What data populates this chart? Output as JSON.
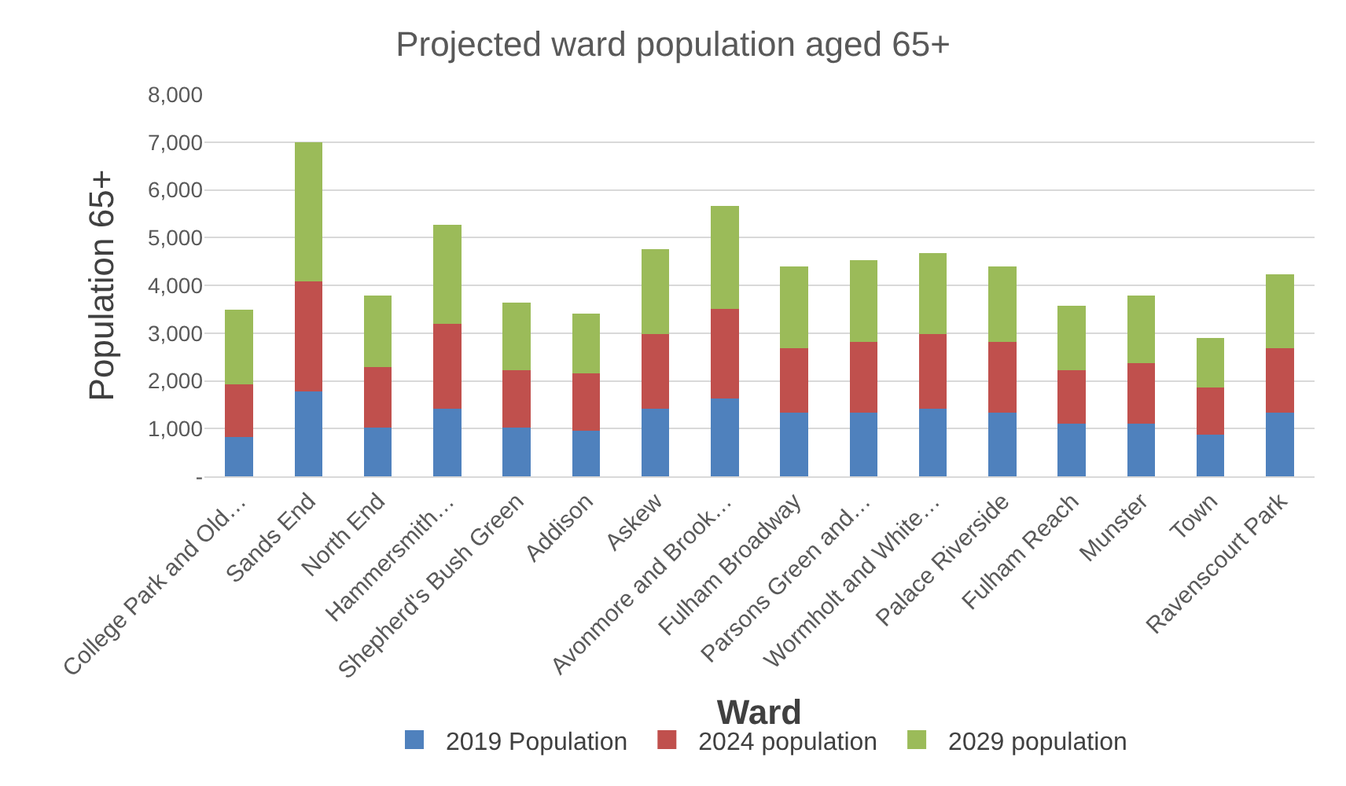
{
  "chart_data": {
    "type": "bar",
    "stacked": true,
    "title": "Projected ward population aged 65+",
    "xlabel": "Ward",
    "ylabel": "Population 65+",
    "categories": [
      "College Park and Old…",
      "Sands End",
      "North End",
      "Hammersmith…",
      "Shepherd's Bush Green",
      "Addison",
      "Askew",
      "Avonmore and Brook…",
      "Fulham Broadway",
      "Parsons Green and…",
      "Wormholt and White…",
      "Palace Riverside",
      "Fulham Reach",
      "Munster",
      "Town",
      "Ravenscourt Park"
    ],
    "series": [
      {
        "name": "2019 Population",
        "color": "#4f81bd",
        "values": [
          820,
          1780,
          1020,
          1410,
          1020,
          960,
          1410,
          1630,
          1330,
          1330,
          1410,
          1330,
          1100,
          1100,
          880,
          1330
        ]
      },
      {
        "name": "2024 population",
        "color": "#c0504d",
        "values": [
          1100,
          2300,
          1270,
          1780,
          1210,
          1200,
          1570,
          1870,
          1350,
          1490,
          1570,
          1490,
          1130,
          1270,
          980,
          1350
        ]
      },
      {
        "name": "2029 population",
        "color": "#9bbb59",
        "values": [
          1570,
          2910,
          1490,
          2080,
          1400,
          1250,
          1780,
          2160,
          1710,
          1710,
          1700,
          1570,
          1340,
          1410,
          1040,
          1550
        ]
      }
    ],
    "ylim": [
      0,
      8000
    ],
    "yticks": [
      {
        "value": 0,
        "label": "-"
      },
      {
        "value": 1000,
        "label": "1,000"
      },
      {
        "value": 2000,
        "label": "2,000"
      },
      {
        "value": 3000,
        "label": "3,000"
      },
      {
        "value": 4000,
        "label": "4,000"
      },
      {
        "value": 5000,
        "label": "5,000"
      },
      {
        "value": 6000,
        "label": "6,000"
      },
      {
        "value": 7000,
        "label": "7,000"
      },
      {
        "value": 8000,
        "label": "8,000"
      }
    ],
    "grid": "y",
    "legend": "bottom"
  }
}
